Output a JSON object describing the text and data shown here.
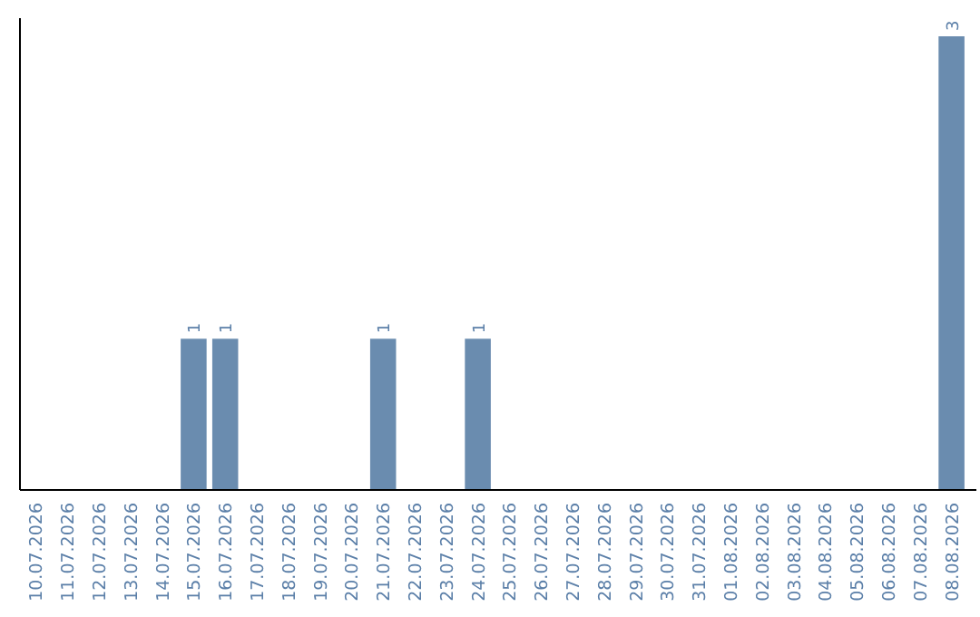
{
  "chart_data": {
    "type": "bar",
    "categories": [
      "10.07.2026",
      "11.07.2026",
      "12.07.2026",
      "13.07.2026",
      "14.07.2026",
      "15.07.2026",
      "16.07.2026",
      "17.07.2026",
      "18.07.2026",
      "19.07.2026",
      "20.07.2026",
      "21.07.2026",
      "22.07.2026",
      "23.07.2026",
      "24.07.2026",
      "25.07.2026",
      "26.07.2026",
      "27.07.2026",
      "28.07.2026",
      "29.07.2026",
      "30.07.2026",
      "31.07.2026",
      "01.08.2026",
      "02.08.2026",
      "03.08.2026",
      "04.08.2026",
      "05.08.2026",
      "06.08.2026",
      "07.08.2026",
      "08.08.2026"
    ],
    "values": [
      0,
      0,
      0,
      0,
      0,
      1,
      1,
      0,
      0,
      0,
      0,
      1,
      0,
      0,
      1,
      0,
      0,
      0,
      0,
      0,
      0,
      0,
      0,
      0,
      0,
      0,
      0,
      0,
      0,
      3
    ],
    "value_labels": [
      null,
      null,
      null,
      null,
      null,
      "1",
      "1",
      null,
      null,
      null,
      null,
      "1",
      null,
      null,
      "1",
      null,
      null,
      null,
      null,
      null,
      null,
      null,
      null,
      null,
      null,
      null,
      null,
      null,
      null,
      "3"
    ],
    "color": "#6a8caf"
  }
}
